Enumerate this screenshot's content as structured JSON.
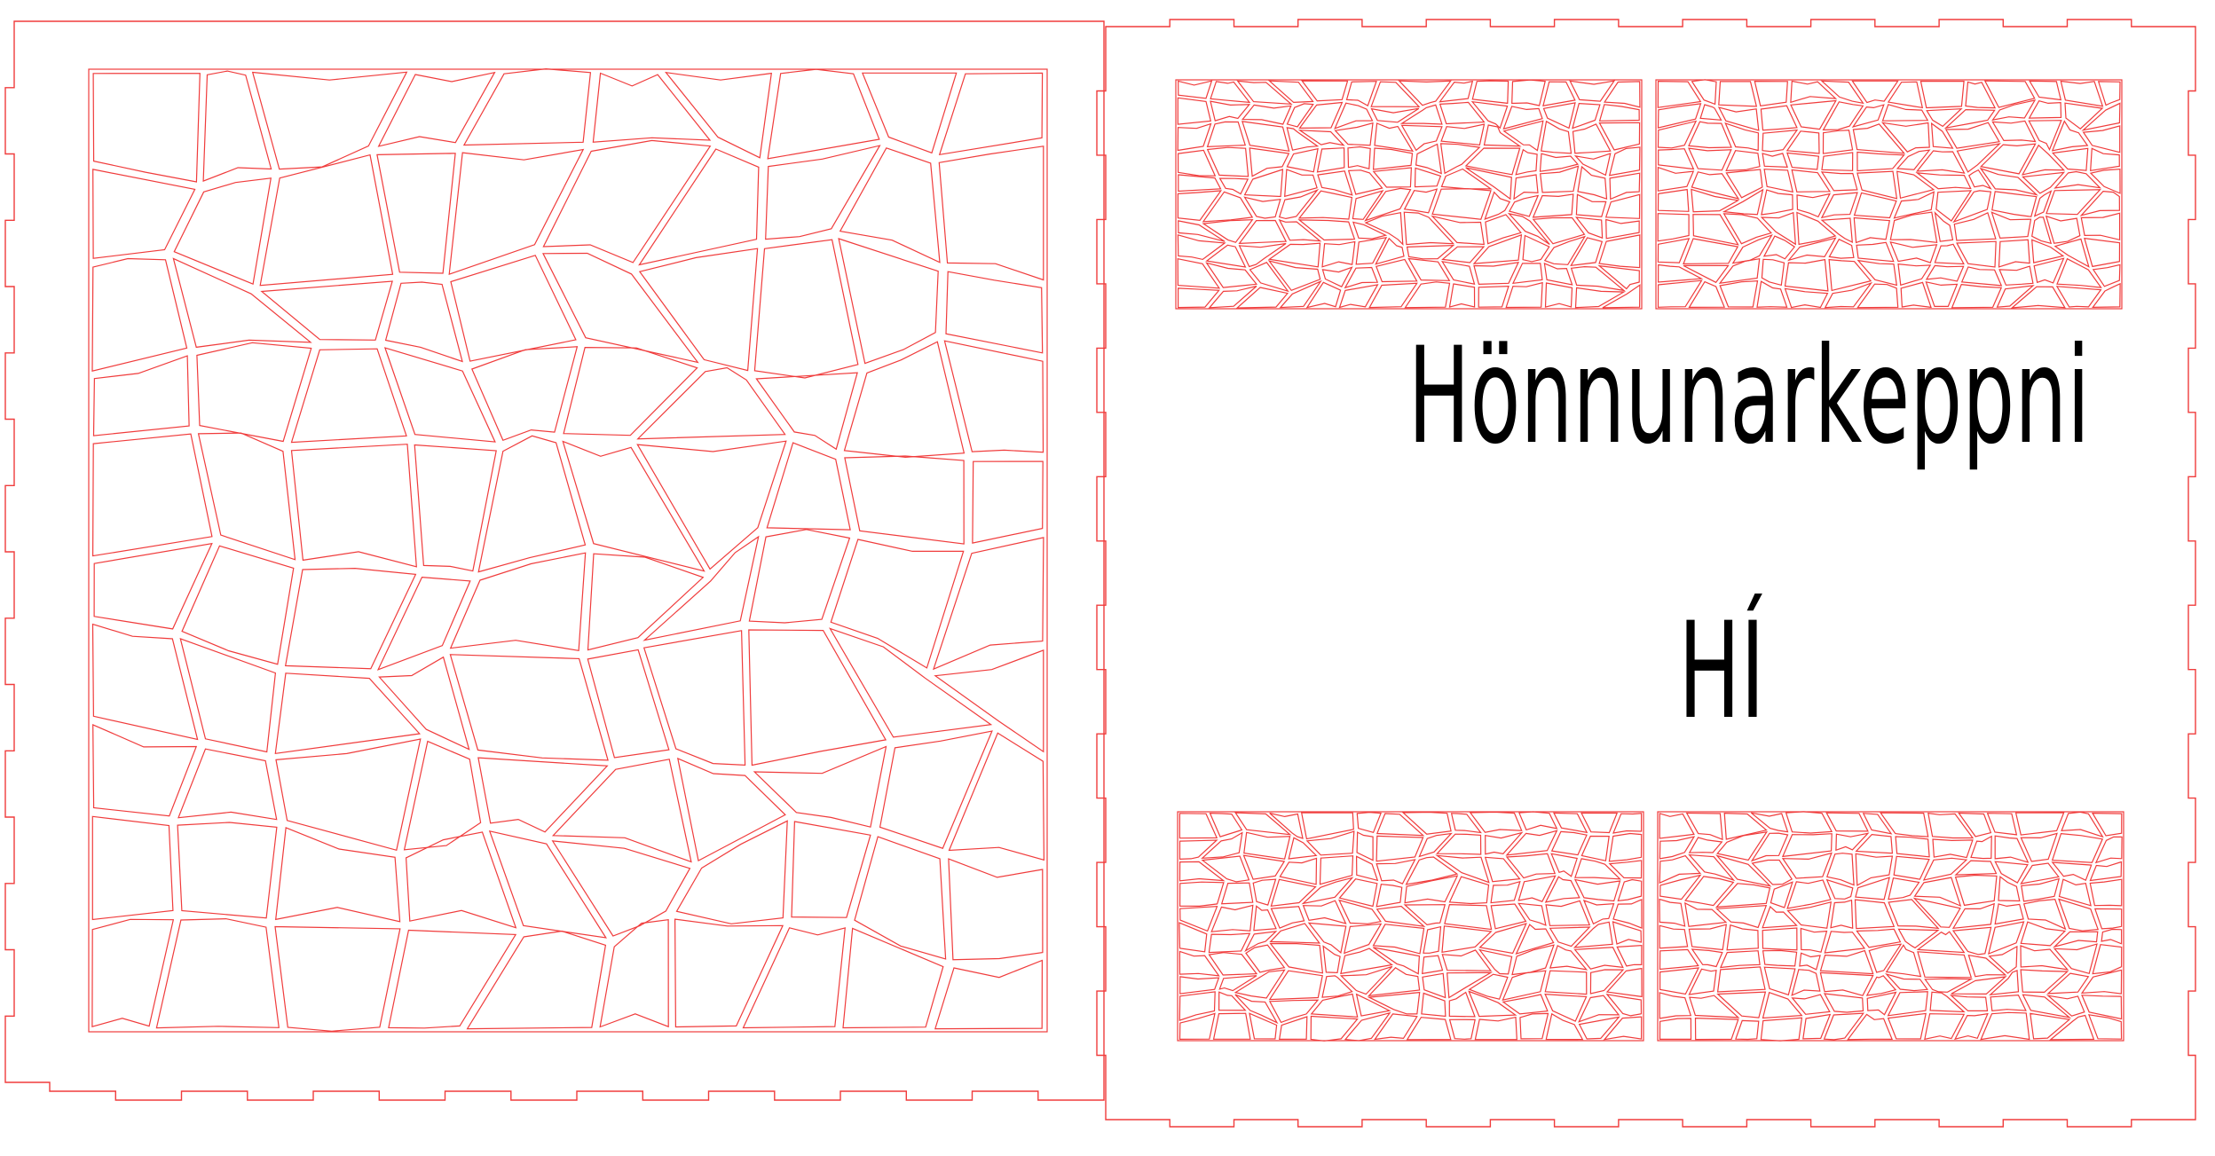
{
  "texts": {
    "line1": "Hönnunarkeppni",
    "line2": "HÍ"
  },
  "colors": {
    "cut_line": "#f03c3c",
    "text": "#000000",
    "background": "#ffffff"
  }
}
